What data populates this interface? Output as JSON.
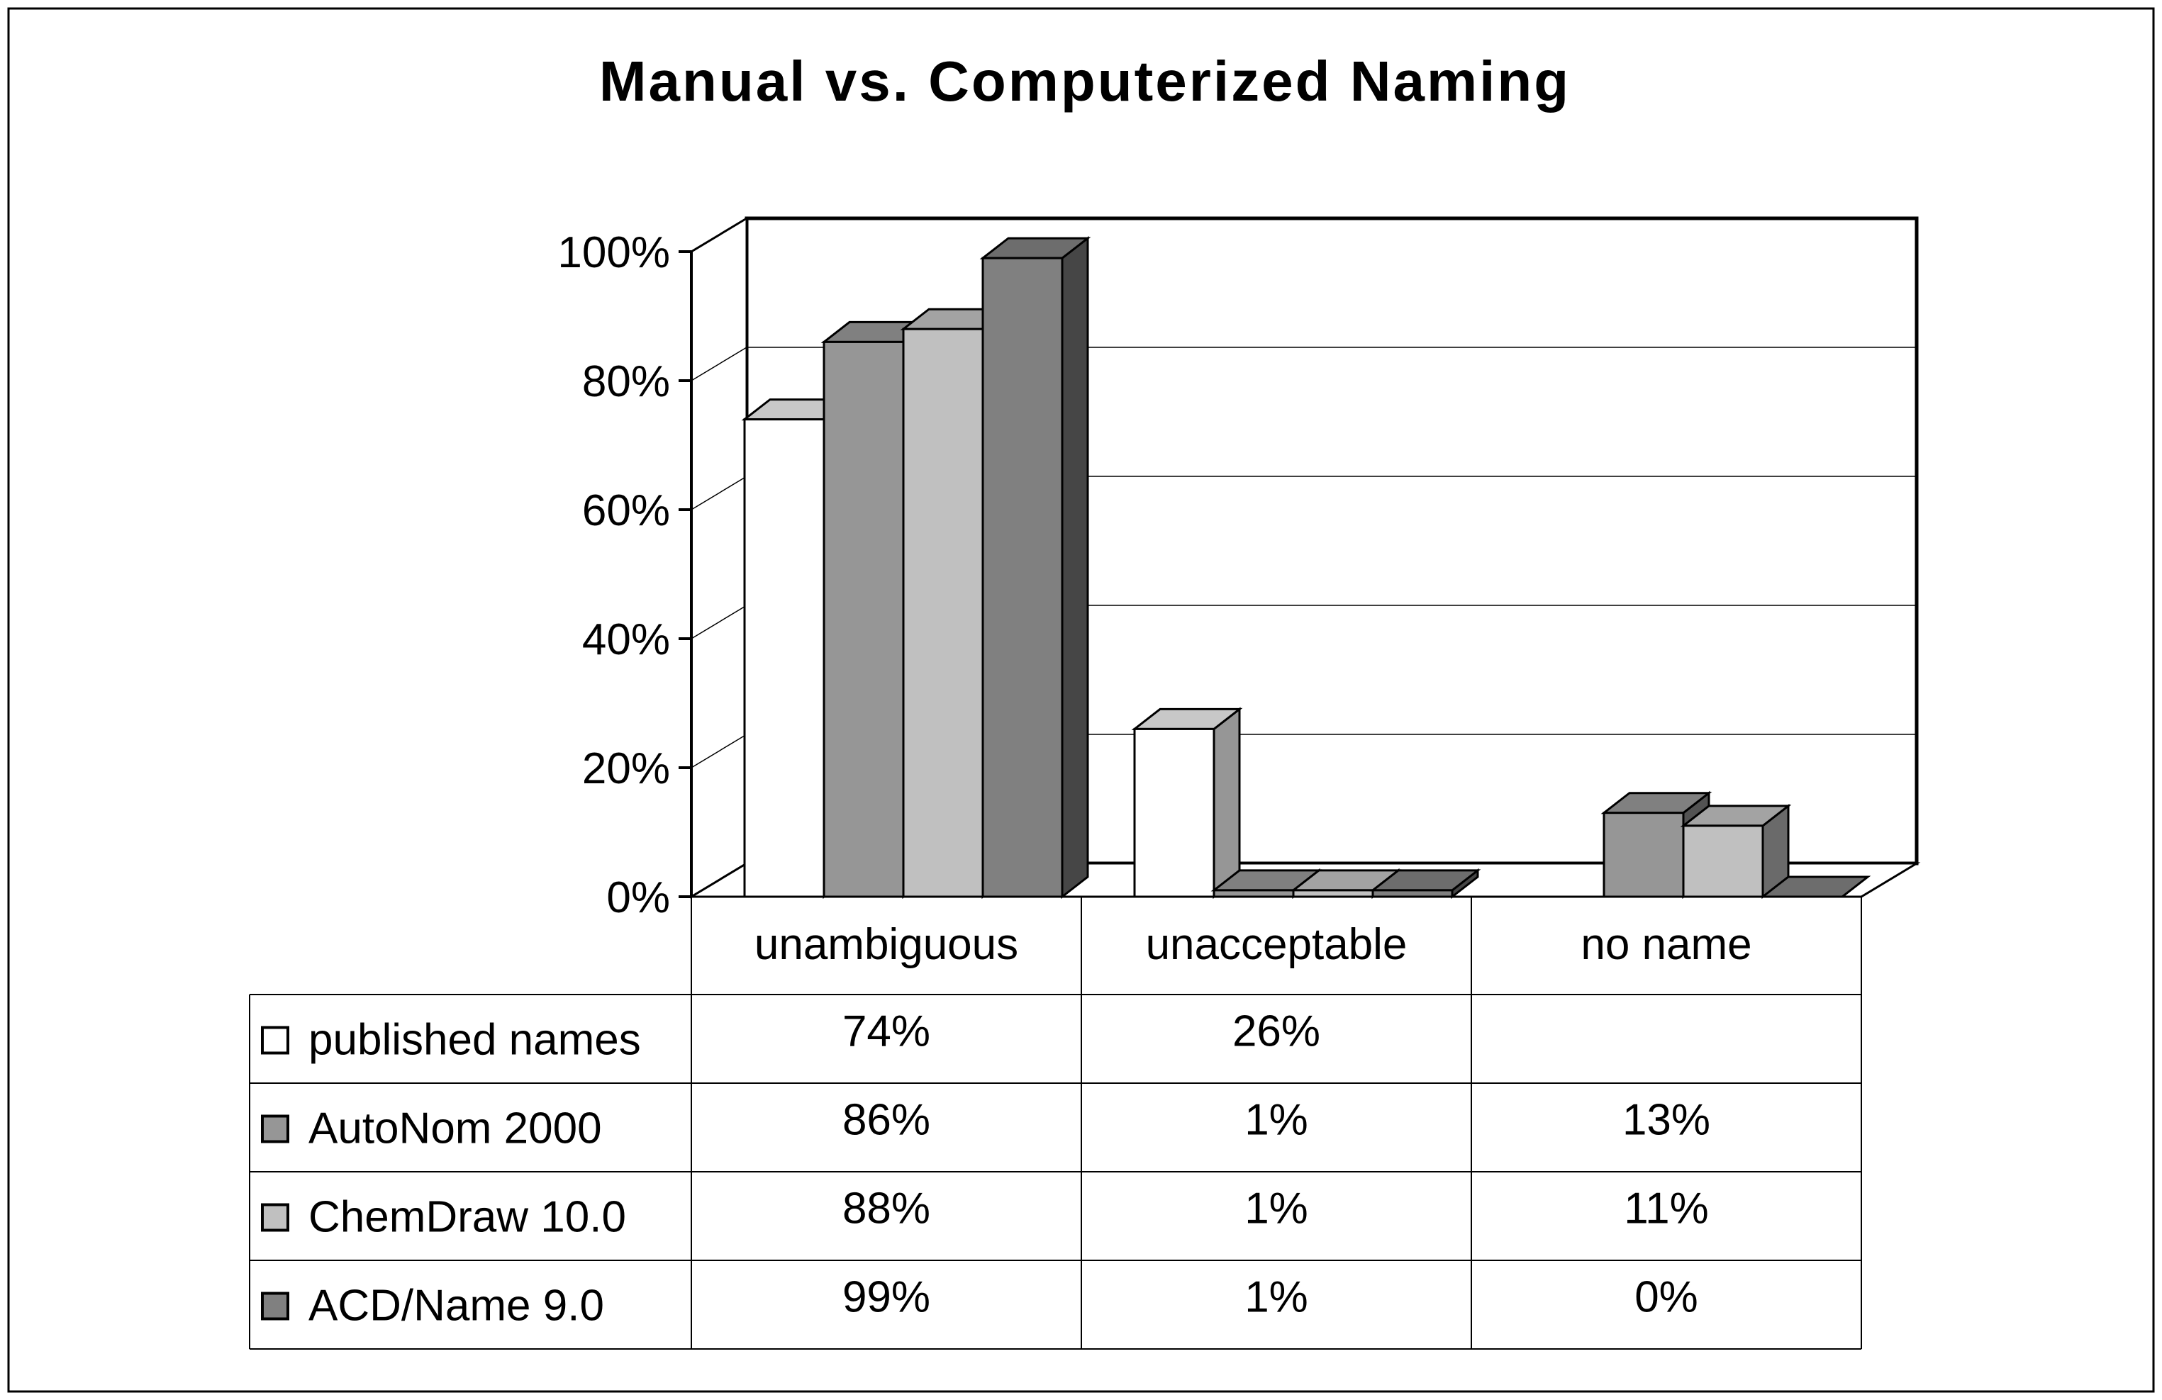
{
  "chart_data": {
    "type": "bar",
    "title": "Manual vs. Computerized Naming",
    "xlabel": "",
    "ylabel": "",
    "ylim": [
      0,
      100
    ],
    "y_ticks": [
      "0%",
      "20%",
      "40%",
      "60%",
      "80%",
      "100%"
    ],
    "y_tick_values": [
      0,
      20,
      40,
      60,
      80,
      100
    ],
    "grid": true,
    "legend": "data-table-left",
    "categories": [
      "unambiguous",
      "unacceptable",
      "no name"
    ],
    "series": [
      {
        "name": "published names",
        "values": [
          74,
          26,
          null
        ],
        "labels": [
          "74%",
          "26%",
          ""
        ],
        "color": "#ffffff"
      },
      {
        "name": "AutoNom 2000",
        "values": [
          86,
          1,
          13
        ],
        "labels": [
          "86%",
          "1%",
          "13%"
        ],
        "color": "#969696"
      },
      {
        "name": "ChemDraw  10.0",
        "values": [
          88,
          1,
          11
        ],
        "labels": [
          "88%",
          "1%",
          "11%"
        ],
        "color": "#c0c0c0"
      },
      {
        "name": "ACD/Name 9.0",
        "values": [
          99,
          1,
          0
        ],
        "labels": [
          "99%",
          "1%",
          "0%"
        ],
        "color": "#808080"
      }
    ]
  }
}
